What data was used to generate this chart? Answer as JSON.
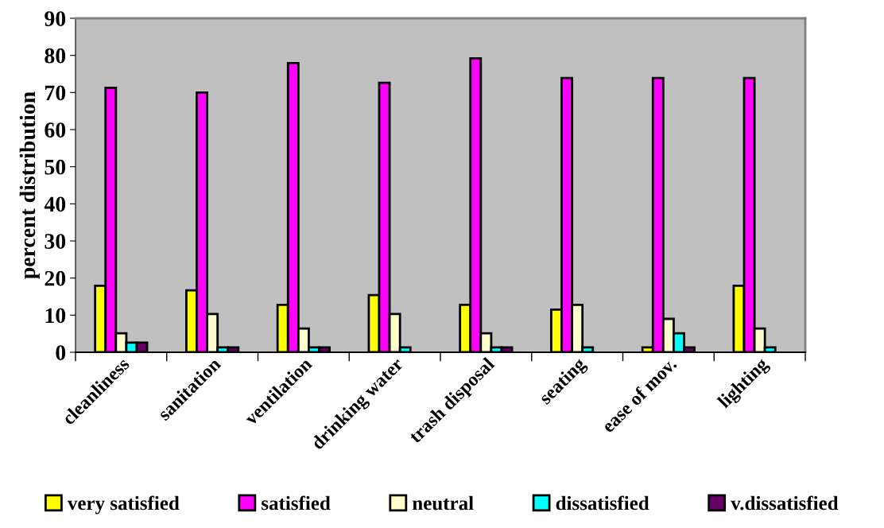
{
  "chart_data": {
    "type": "bar",
    "ylabel": "percent distribution",
    "categories": [
      "cleanliness",
      "sanitation",
      "ventilation",
      "drinking water",
      "trash disposal",
      "seating",
      "ease of mov.",
      "lighting"
    ],
    "series": [
      {
        "name": "very satisfied",
        "color": "#ffff00",
        "values": [
          17.9,
          16.7,
          12.8,
          15.4,
          12.8,
          11.5,
          1.3,
          17.9
        ]
      },
      {
        "name": "satisfied",
        "color": "#ff00ff",
        "values": [
          71.3,
          70.0,
          77.9,
          72.6,
          79.2,
          73.9,
          73.9,
          73.9
        ]
      },
      {
        "name": "neutral",
        "color": "#ffffcc",
        "values": [
          5.1,
          10.3,
          6.4,
          10.3,
          5.1,
          12.8,
          9.0,
          6.4
        ]
      },
      {
        "name": "dissatisfied",
        "color": "#00ffff",
        "values": [
          2.6,
          1.3,
          1.3,
          1.3,
          1.3,
          1.3,
          5.1,
          1.3
        ]
      },
      {
        "name": "v.dissatisfied",
        "color": "#660066",
        "values": [
          2.6,
          1.3,
          1.3,
          null,
          1.3,
          null,
          1.3,
          null
        ]
      }
    ],
    "ylim": [
      0,
      90
    ],
    "yticks": [
      0,
      10,
      20,
      30,
      40,
      50,
      60,
      70,
      80,
      90
    ],
    "grid": false,
    "legend": "bottom"
  }
}
